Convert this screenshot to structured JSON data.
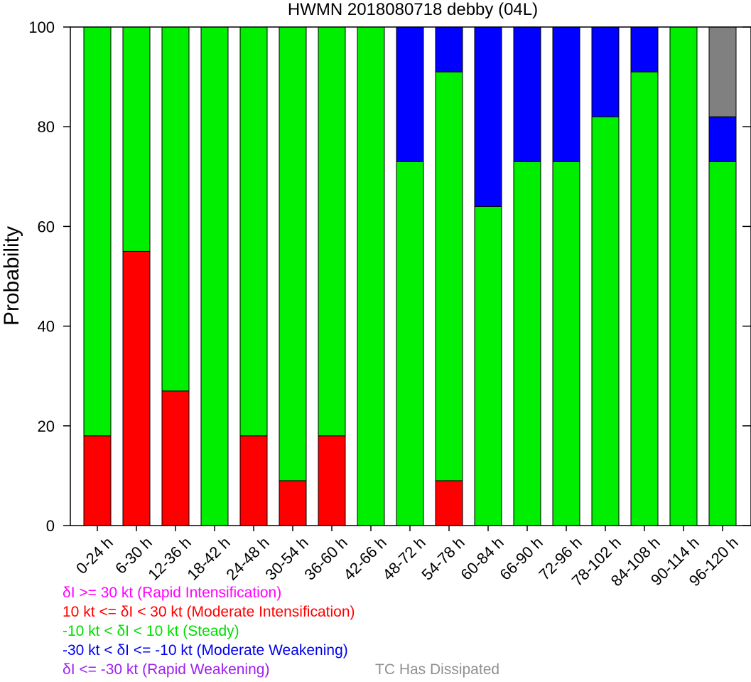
{
  "chart_data": {
    "type": "bar",
    "stacked": true,
    "title": "HWMN 2018080718 debby (04L)",
    "xlabel": "",
    "ylabel": "Probability",
    "ylim": [
      0,
      100
    ],
    "yticks": [
      0,
      20,
      40,
      60,
      80,
      100
    ],
    "grid": false,
    "categories": [
      "0-24 h",
      "6-30 h",
      "12-36 h",
      "18-42 h",
      "24-48 h",
      "30-54 h",
      "36-60 h",
      "42-66 h",
      "48-72 h",
      "54-78 h",
      "60-84 h",
      "66-90 h",
      "72-96 h",
      "78-102 h",
      "84-108 h",
      "90-114 h",
      "96-120 h"
    ],
    "series": [
      {
        "key": "ri",
        "color": "#ff00ff",
        "values": [
          0,
          0,
          0,
          0,
          0,
          0,
          0,
          0,
          0,
          0,
          0,
          0,
          0,
          0,
          0,
          0,
          0
        ]
      },
      {
        "key": "mi",
        "color": "#ff0000",
        "values": [
          18,
          55,
          27,
          0,
          18,
          9,
          18,
          0,
          0,
          9,
          0,
          0,
          0,
          0,
          0,
          0,
          0
        ]
      },
      {
        "key": "steady",
        "color": "#00ee00",
        "values": [
          82,
          45,
          73,
          100,
          82,
          91,
          82,
          100,
          73,
          82,
          64,
          73,
          73,
          82,
          91,
          100,
          73
        ]
      },
      {
        "key": "mw",
        "color": "#0000ff",
        "values": [
          0,
          0,
          0,
          0,
          0,
          0,
          0,
          0,
          27,
          9,
          36,
          27,
          27,
          18,
          9,
          0,
          9
        ]
      },
      {
        "key": "rw",
        "color": "#a020f0",
        "values": [
          0,
          0,
          0,
          0,
          0,
          0,
          0,
          0,
          0,
          0,
          0,
          0,
          0,
          0,
          0,
          0,
          0
        ]
      },
      {
        "key": "dissipated",
        "color": "#808080",
        "values": [
          0,
          0,
          0,
          0,
          0,
          0,
          0,
          0,
          0,
          0,
          0,
          0,
          0,
          0,
          0,
          0,
          18
        ]
      }
    ]
  },
  "legend": {
    "ri": {
      "text": "δI >= 30 kt (Rapid Intensification)",
      "color": "#ff00ff"
    },
    "mi": {
      "text": "10 kt <= δI < 30 kt (Moderate Intensification)",
      "color": "#ff0000"
    },
    "steady": {
      "text": "-10 kt < δI < 10 kt (Steady)",
      "color": "#00dd00"
    },
    "mw": {
      "text": "-30 kt < δI <= -10 kt (Moderate Weakening)",
      "color": "#0000ee"
    },
    "rw": {
      "text": "δI <= -30 kt (Rapid Weakening)",
      "color": "#a020f0"
    },
    "dissipated": {
      "text": "TC Has Dissipated",
      "color": "#909090"
    }
  }
}
